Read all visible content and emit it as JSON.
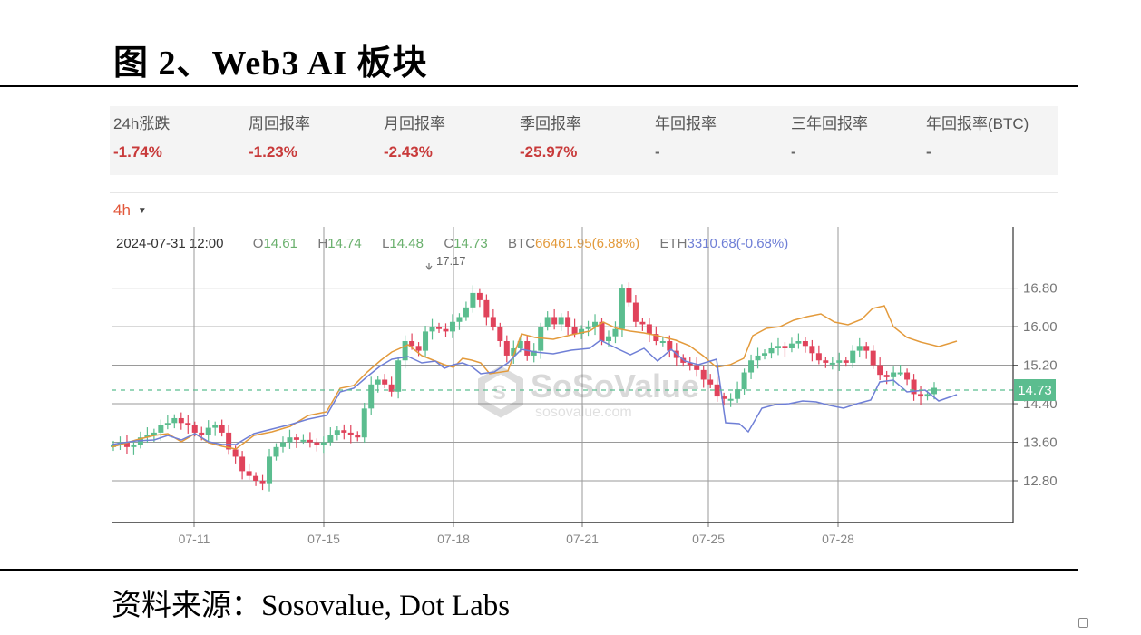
{
  "header": {
    "title": "图  2、Web3 AI 板块"
  },
  "stats": [
    {
      "label": "24h涨跌",
      "value": "-1.74%"
    },
    {
      "label": "周回报率",
      "value": "-1.23%"
    },
    {
      "label": "月回报率",
      "value": "-2.43%"
    },
    {
      "label": "季回报率",
      "value": "-25.97%"
    },
    {
      "label": "年回报率",
      "value": "-"
    },
    {
      "label": "三年回报率",
      "value": "-"
    },
    {
      "label": "年回报率(BTC)",
      "value": "-"
    }
  ],
  "toolbar": {
    "interval": "4h",
    "interval_icon": "caret-down-icon"
  },
  "ohlc": {
    "datetime": "2024-07-31 12:00",
    "o_label": "O",
    "o": "14.61",
    "h_label": "H",
    "h": "14.74",
    "l_label": "L",
    "l": "14.48",
    "c_label": "C",
    "c": "14.73",
    "btc_label": "BTC",
    "btc": "66461.95(6.88%)",
    "eth_label": "ETH",
    "eth": "3310.68(-0.68%)"
  },
  "watermark": {
    "brand": "SoSoValue",
    "url": "sosovalue.com"
  },
  "footer": {
    "source": "资料来源：Sosovalue, Dot Labs"
  },
  "colors": {
    "up": "#5bbd8f",
    "down": "#e0435b",
    "btc": "#e39a3b",
    "eth": "#6f7fd6",
    "last_price_bg": "#5bbd8f",
    "negative": "#c83a3a",
    "interval": "#e2573a"
  },
  "chart_data": {
    "type": "candlestick",
    "title": "Web3 AI 板块",
    "interval": "4h",
    "xlabel": "",
    "ylabel": "",
    "x_ticks": [
      "07-11",
      "07-15",
      "07-18",
      "07-21",
      "07-25",
      "07-28"
    ],
    "y_ticks": [
      12.8,
      13.6,
      14.4,
      15.2,
      16.0,
      16.8
    ],
    "ylim": [
      12.0,
      17.6
    ],
    "grid": true,
    "last_price": 14.73,
    "max_annotation": 17.17,
    "legend": [
      "BTC",
      "ETH"
    ],
    "candles_approx_close": [
      13.55,
      13.6,
      13.5,
      13.55,
      13.7,
      13.75,
      13.8,
      13.95,
      14.0,
      14.1,
      14.0,
      13.95,
      13.8,
      13.75,
      13.9,
      13.95,
      13.8,
      13.45,
      13.3,
      13.0,
      12.9,
      12.8,
      12.75,
      13.3,
      13.5,
      13.6,
      13.7,
      13.65,
      13.65,
      13.6,
      13.55,
      13.6,
      13.75,
      13.85,
      13.8,
      13.75,
      13.7,
      14.3,
      14.8,
      14.9,
      14.8,
      14.65,
      15.3,
      15.7,
      15.6,
      15.5,
      15.9,
      16.0,
      15.95,
      15.9,
      16.1,
      16.2,
      16.4,
      16.7,
      16.55,
      16.2,
      16.0,
      15.7,
      15.4,
      15.55,
      15.7,
      15.4,
      15.5,
      16.0,
      16.2,
      16.05,
      16.2,
      16.0,
      15.85,
      15.95,
      16.0,
      16.1,
      15.7,
      15.8,
      15.95,
      16.8,
      16.5,
      16.1,
      16.05,
      15.85,
      15.7,
      15.7,
      15.5,
      15.35,
      15.25,
      15.2,
      15.1,
      14.9,
      14.8,
      14.55,
      14.5,
      14.5,
      14.7,
      15.05,
      15.3,
      15.4,
      15.45,
      15.55,
      15.6,
      15.55,
      15.65,
      15.7,
      15.6,
      15.45,
      15.3,
      15.25,
      15.25,
      15.3,
      15.25,
      15.5,
      15.6,
      15.5,
      15.2,
      15.0,
      14.95,
      15.05,
      15.05,
      14.9,
      14.6,
      14.55,
      14.6,
      14.73
    ],
    "series": [
      {
        "name": "BTC (relative)",
        "color": "#e39a3b"
      },
      {
        "name": "ETH (relative)",
        "color": "#6f7fd6"
      }
    ]
  }
}
